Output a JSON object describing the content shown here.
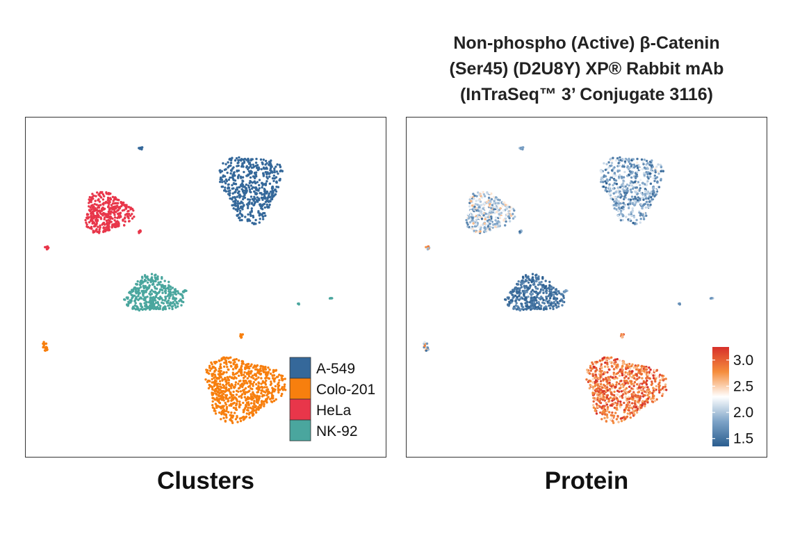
{
  "figure": {
    "right_title_lines": [
      "Non-phospho (Active) β-Catenin",
      "(Ser45) (D2U8Y) XP® Rabbit mAb",
      "(InTraSeq™ 3’ Conjugate 3116)"
    ],
    "left_label": "Clusters",
    "right_label": "Protein"
  },
  "chart_data": [
    {
      "type": "scatter",
      "panel": "Clusters",
      "title": "",
      "xlabel": "",
      "ylabel": "",
      "xlim": [
        0,
        100
      ],
      "ylim": [
        0,
        100
      ],
      "grid": false,
      "legend_position": "bottom-right",
      "series": [
        {
          "name": "A-549",
          "color": "#35689a"
        },
        {
          "name": "Colo-201",
          "color": "#f77f0e"
        },
        {
          "name": "HeLa",
          "color": "#e8364a"
        },
        {
          "name": "NK-92",
          "color": "#4aa69e"
        }
      ],
      "clusters": [
        {
          "series": "A-549",
          "cx": 62.5,
          "cy": 79.6,
          "rx": 9.6,
          "ry": 11.6,
          "n": 520
        },
        {
          "series": "Colo-201",
          "cx": 60.0,
          "cy": 20.4,
          "rx": 12.7,
          "ry": 10.6,
          "n": 760
        },
        {
          "series": "HeLa",
          "cx": 22.7,
          "cy": 71.8,
          "rx": 7.7,
          "ry": 6.8,
          "n": 380
        },
        {
          "series": "NK-92",
          "cx": 35.6,
          "cy": 47.8,
          "rx": 9.0,
          "ry": 6.2,
          "n": 380
        },
        {
          "series": "A-549",
          "cx": 32.0,
          "cy": 90.8,
          "rx": 0.7,
          "ry": 0.5,
          "n": 10
        },
        {
          "series": "HeLa",
          "cx": 6.0,
          "cy": 61.6,
          "rx": 0.7,
          "ry": 0.6,
          "n": 10
        },
        {
          "series": "HeLa",
          "cx": 31.7,
          "cy": 66.3,
          "rx": 0.4,
          "ry": 0.7,
          "n": 8
        },
        {
          "series": "NK-92",
          "cx": 44.1,
          "cy": 48.8,
          "rx": 0.6,
          "ry": 0.5,
          "n": 8
        },
        {
          "series": "NK-92",
          "cx": 75.7,
          "cy": 45.1,
          "rx": 0.3,
          "ry": 0.3,
          "n": 4
        },
        {
          "series": "NK-92",
          "cx": 84.7,
          "cy": 46.7,
          "rx": 0.5,
          "ry": 0.4,
          "n": 6
        },
        {
          "series": "Colo-201",
          "cx": 5.5,
          "cy": 32.7,
          "rx": 0.9,
          "ry": 1.8,
          "n": 16
        },
        {
          "series": "Colo-201",
          "cx": 59.9,
          "cy": 35.7,
          "rx": 0.5,
          "ry": 1.0,
          "n": 8
        }
      ]
    },
    {
      "type": "scatter",
      "panel": "Protein",
      "title": "Non-phospho (Active) β-Catenin (Ser45) (D2U8Y) XP® Rabbit mAb (InTraSeq™ 3’ Conjugate 3116)",
      "xlabel": "",
      "ylabel": "",
      "xlim": [
        0,
        100
      ],
      "ylim": [
        0,
        100
      ],
      "grid": false,
      "colorbar": {
        "position": "bottom-right",
        "min": 1.35,
        "max": 3.25,
        "ticks": [
          1.5,
          2.0,
          2.5,
          3.0
        ],
        "tick_labels": [
          "1.5",
          "2.0",
          "2.5",
          "3.0"
        ],
        "colors": [
          "#2a5d8f",
          "#7da3c7",
          "#ffffff",
          "#f58d3c",
          "#d7302a"
        ]
      },
      "clusters": [
        {
          "series": "A-549",
          "cx": 62.5,
          "cy": 79.6,
          "rx": 9.6,
          "ry": 11.6,
          "n": 520,
          "mean": 1.85,
          "sd": 0.28
        },
        {
          "series": "Colo-201",
          "cx": 60.0,
          "cy": 20.4,
          "rx": 12.7,
          "ry": 10.6,
          "n": 760,
          "mean": 2.9,
          "sd": 0.25
        },
        {
          "series": "HeLa",
          "cx": 22.7,
          "cy": 71.8,
          "rx": 7.7,
          "ry": 6.8,
          "n": 380,
          "mean": 2.05,
          "sd": 0.3
        },
        {
          "series": "NK-92",
          "cx": 35.6,
          "cy": 47.8,
          "rx": 9.0,
          "ry": 6.2,
          "n": 380,
          "mean": 1.5,
          "sd": 0.12
        },
        {
          "series": "A-549",
          "cx": 32.0,
          "cy": 90.8,
          "rx": 0.7,
          "ry": 0.5,
          "n": 10,
          "mean": 1.8,
          "sd": 0.2
        },
        {
          "series": "HeLa",
          "cx": 6.0,
          "cy": 61.6,
          "rx": 0.7,
          "ry": 0.6,
          "n": 10,
          "mean": 2.3,
          "sd": 0.4
        },
        {
          "series": "HeLa",
          "cx": 31.7,
          "cy": 66.3,
          "rx": 0.4,
          "ry": 0.7,
          "n": 8,
          "mean": 1.8,
          "sd": 0.2
        },
        {
          "series": "NK-92",
          "cx": 44.1,
          "cy": 48.8,
          "rx": 0.6,
          "ry": 0.5,
          "n": 8,
          "mean": 1.7,
          "sd": 0.2
        },
        {
          "series": "NK-92",
          "cx": 75.7,
          "cy": 45.1,
          "rx": 0.3,
          "ry": 0.3,
          "n": 4,
          "mean": 1.6,
          "sd": 0.1
        },
        {
          "series": "NK-92",
          "cx": 84.7,
          "cy": 46.7,
          "rx": 0.5,
          "ry": 0.4,
          "n": 6,
          "mean": 1.8,
          "sd": 0.2
        },
        {
          "series": "Colo-201",
          "cx": 5.5,
          "cy": 32.7,
          "rx": 0.9,
          "ry": 1.8,
          "n": 16,
          "mean": 2.2,
          "sd": 0.4
        },
        {
          "series": "Colo-201",
          "cx": 59.9,
          "cy": 35.7,
          "rx": 0.5,
          "ry": 1.0,
          "n": 8,
          "mean": 2.8,
          "sd": 0.2
        }
      ]
    }
  ]
}
